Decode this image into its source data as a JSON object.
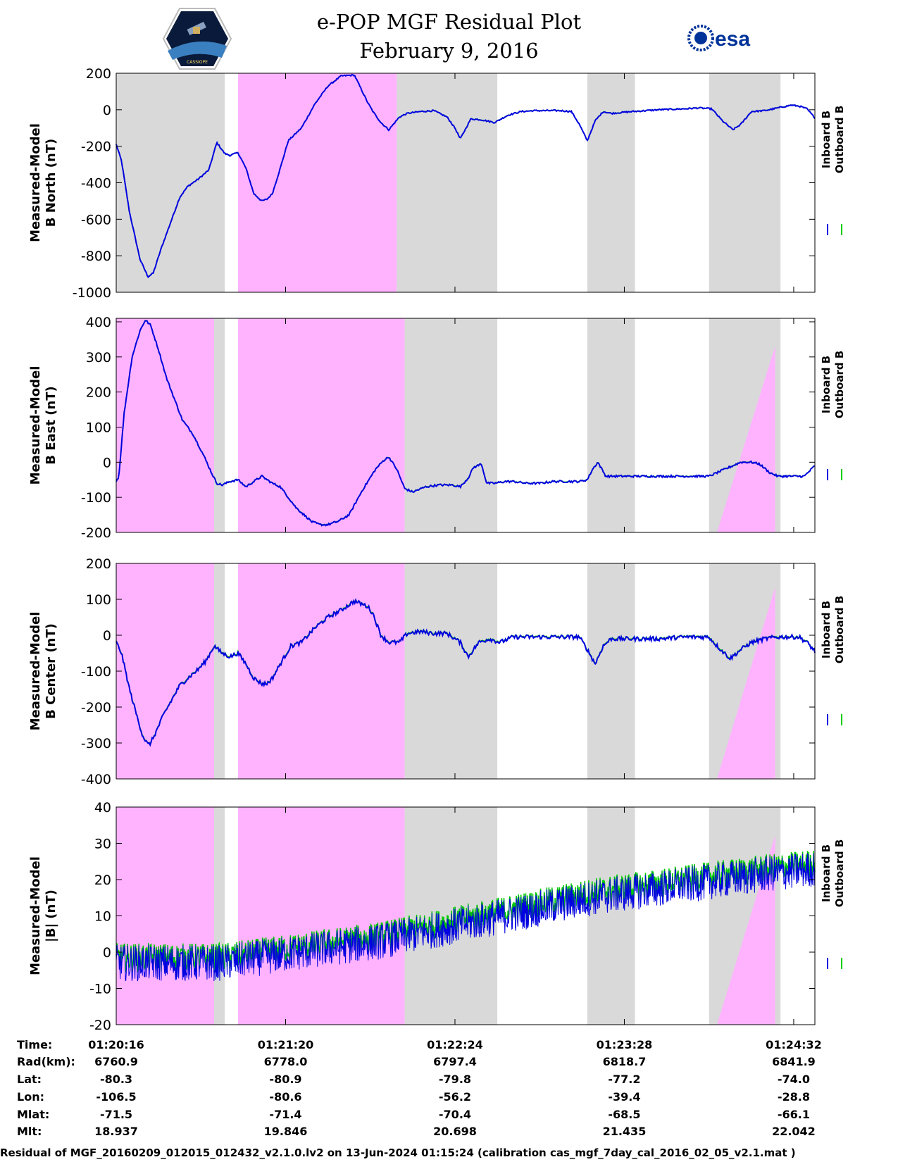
{
  "header": {
    "title_line1": "e-POP MGF Residual Plot",
    "title_line2": "February 9, 2016",
    "left_logo_text": "CASSIOPE",
    "right_logo_text": "esa"
  },
  "colors": {
    "inboard": "#0000e0",
    "outboard": "#00cc00",
    "gray_band": "#d9d9d9",
    "pink_band": "#ffb3ff"
  },
  "chart_data": [
    {
      "type": "line",
      "id": "bnorth",
      "ylabel_line1": "Measured-Model",
      "ylabel_line2": "B North (nT)",
      "ylim": [
        -1000,
        200
      ],
      "yticks": [
        "200",
        "0",
        "-200",
        "-400",
        "-600",
        "-800",
        "-1000"
      ],
      "ytick_values": [
        200,
        0,
        -200,
        -400,
        -600,
        -800,
        -1000
      ],
      "legend": [
        "Inboard B",
        "Outboard B"
      ],
      "xlim_seconds": [
        0,
        264
      ],
      "shaded_regions_seconds": [
        {
          "kind": "gray",
          "from": 0,
          "to": 41
        },
        {
          "kind": "pink",
          "from": 46,
          "to": 106
        },
        {
          "kind": "gray",
          "from": 106,
          "to": 144
        },
        {
          "kind": "gray",
          "from": 178,
          "to": 196
        },
        {
          "kind": "gray",
          "from": 224,
          "to": 251
        }
      ],
      "series": [
        {
          "name": "Inboard B",
          "noise": 4,
          "x": [
            0,
            2,
            5,
            9,
            12,
            14,
            17,
            21,
            24,
            27,
            31,
            35,
            38,
            41,
            43,
            46,
            49,
            52,
            55,
            57,
            59,
            62,
            65,
            70,
            75,
            80,
            85,
            90,
            95,
            97,
            100,
            103,
            107,
            110,
            115,
            120,
            125,
            128,
            130,
            134,
            138,
            143,
            148,
            153,
            158,
            163,
            168,
            172,
            175,
            178,
            181,
            184,
            187,
            195,
            205,
            215,
            220,
            225,
            229,
            233,
            236,
            240,
            245,
            250,
            255,
            258,
            261,
            264
          ],
          "y": [
            -190,
            -280,
            -560,
            -820,
            -915,
            -895,
            -760,
            -600,
            -480,
            -420,
            -380,
            -330,
            -180,
            -240,
            -250,
            -235,
            -320,
            -460,
            -500,
            -490,
            -460,
            -320,
            -170,
            -100,
            30,
            130,
            185,
            190,
            40,
            -10,
            -70,
            -110,
            -40,
            -20,
            -10,
            -5,
            -40,
            -100,
            -160,
            -50,
            -55,
            -70,
            -30,
            -10,
            -5,
            -5,
            -5,
            -10,
            -80,
            -170,
            -60,
            -10,
            -20,
            -10,
            0,
            5,
            10,
            5,
            -60,
            -110,
            -80,
            -10,
            -5,
            10,
            25,
            20,
            5,
            -45
          ]
        }
      ]
    },
    {
      "type": "line",
      "id": "beast",
      "ylabel_line1": "Measured-Model",
      "ylabel_line2": "B East (nT)",
      "ylim": [
        -200,
        410
      ],
      "yticks": [
        "400",
        "300",
        "200",
        "100",
        "0",
        "-100",
        "-200"
      ],
      "ytick_values": [
        400,
        300,
        200,
        100,
        0,
        -100,
        -200
      ],
      "legend": [
        "Inboard B",
        "Outboard B"
      ],
      "xlim_seconds": [
        0,
        264
      ],
      "shaded_regions_seconds": [
        {
          "kind": "pink",
          "from": 0,
          "to": 37
        },
        {
          "kind": "gray",
          "from": 37,
          "to": 41
        },
        {
          "kind": "pink",
          "from": 46,
          "to": 109
        },
        {
          "kind": "gray",
          "from": 109,
          "to": 144
        },
        {
          "kind": "gray",
          "from": 178,
          "to": 196
        },
        {
          "kind": "gray",
          "from": 224,
          "to": 251
        }
      ],
      "ramp_triangle_seconds": {
        "x_start": 227,
        "x_peak": 249,
        "peak_fraction": 0.87
      },
      "series": [
        {
          "name": "Inboard B",
          "noise": 3,
          "x": [
            0,
            1,
            3,
            6,
            9,
            11,
            13,
            16,
            19,
            21,
            25,
            29,
            33,
            36,
            38,
            40,
            43,
            46,
            49,
            52,
            55,
            59,
            62,
            65,
            68,
            71,
            74,
            77,
            80,
            84,
            88,
            93,
            98,
            101,
            103,
            106,
            109,
            112,
            117,
            122,
            127,
            130,
            133,
            135,
            138,
            140,
            143,
            147,
            150,
            155,
            160,
            165,
            170,
            175,
            178,
            180,
            182,
            185,
            195,
            205,
            215,
            224,
            230,
            236,
            240,
            243,
            247,
            250,
            255,
            260,
            264
          ],
          "y": [
            -55,
            -40,
            140,
            300,
            375,
            405,
            390,
            320,
            240,
            200,
            120,
            80,
            20,
            -30,
            -60,
            -65,
            -55,
            -50,
            -70,
            -55,
            -40,
            -60,
            -70,
            -100,
            -130,
            -150,
            -170,
            -178,
            -178,
            -168,
            -150,
            -80,
            -20,
            5,
            15,
            -20,
            -75,
            -85,
            -70,
            -65,
            -65,
            -70,
            -45,
            -15,
            -5,
            -60,
            -60,
            -55,
            -55,
            -60,
            -60,
            -55,
            -55,
            -55,
            -50,
            -20,
            0,
            -40,
            -40,
            -40,
            -40,
            -40,
            -20,
            0,
            0,
            -5,
            -30,
            -40,
            -40,
            -40,
            -10
          ]
        }
      ]
    },
    {
      "type": "line",
      "id": "bcenter",
      "ylabel_line1": "Measured-Model",
      "ylabel_line2": "B Center (nT)",
      "ylim": [
        -400,
        200
      ],
      "yticks": [
        "200",
        "100",
        "0",
        "-100",
        "-200",
        "-300",
        "-400"
      ],
      "ytick_values": [
        200,
        100,
        0,
        -100,
        -200,
        -300,
        -400
      ],
      "legend": [
        "Inboard B",
        "Outboard B"
      ],
      "xlim_seconds": [
        0,
        264
      ],
      "shaded_regions_seconds": [
        {
          "kind": "pink",
          "from": 0,
          "to": 37
        },
        {
          "kind": "gray",
          "from": 37,
          "to": 41
        },
        {
          "kind": "pink",
          "from": 46,
          "to": 109
        },
        {
          "kind": "gray",
          "from": 109,
          "to": 144
        },
        {
          "kind": "gray",
          "from": 178,
          "to": 196
        },
        {
          "kind": "gray",
          "from": 224,
          "to": 251
        }
      ],
      "ramp_triangle_seconds": {
        "x_start": 227,
        "x_peak": 249,
        "peak_fraction": 0.89
      },
      "series": [
        {
          "name": "Inboard B",
          "noise": 6,
          "x": [
            0,
            2,
            5,
            8,
            10,
            12,
            13,
            15,
            18,
            21,
            24,
            27,
            31,
            34,
            37,
            40,
            43,
            46,
            49,
            52,
            55,
            57,
            59,
            62,
            66,
            70,
            75,
            80,
            85,
            90,
            95,
            97,
            100,
            103,
            107,
            110,
            115,
            120,
            125,
            130,
            133,
            137,
            141,
            145,
            150,
            160,
            170,
            175,
            178,
            181,
            184,
            187,
            195,
            205,
            215,
            224,
            227,
            232,
            236,
            240,
            245,
            250,
            255,
            258,
            261,
            264
          ],
          "y": [
            -20,
            -50,
            -150,
            -230,
            -280,
            -305,
            -300,
            -270,
            -220,
            -180,
            -140,
            -120,
            -95,
            -70,
            -30,
            -50,
            -60,
            -50,
            -80,
            -120,
            -135,
            -135,
            -120,
            -80,
            -30,
            -20,
            20,
            50,
            70,
            95,
            80,
            60,
            0,
            -20,
            -20,
            5,
            10,
            5,
            5,
            -20,
            -60,
            -20,
            -10,
            -20,
            -5,
            -5,
            -5,
            -5,
            -40,
            -80,
            -30,
            -10,
            -10,
            -10,
            -5,
            -5,
            -30,
            -65,
            -40,
            -20,
            -10,
            -5,
            -5,
            -5,
            -20,
            -45
          ]
        }
      ]
    },
    {
      "type": "line",
      "id": "bmag",
      "ylabel_line1": "Measured-Model",
      "ylabel_line2": "|B| (nT)",
      "ylim": [
        -20,
        40
      ],
      "yticks": [
        "40",
        "30",
        "20",
        "10",
        "0",
        "-10",
        "-20"
      ],
      "ytick_values": [
        40,
        30,
        20,
        10,
        0,
        -10,
        -20
      ],
      "legend": [
        "Inboard B",
        "Outboard B"
      ],
      "xlim_seconds": [
        0,
        264
      ],
      "shaded_regions_seconds": [
        {
          "kind": "pink",
          "from": 0,
          "to": 37
        },
        {
          "kind": "gray",
          "from": 37,
          "to": 41
        },
        {
          "kind": "pink",
          "from": 46,
          "to": 109
        },
        {
          "kind": "gray",
          "from": 109,
          "to": 144
        },
        {
          "kind": "gray",
          "from": 178,
          "to": 196
        },
        {
          "kind": "gray",
          "from": 224,
          "to": 251
        }
      ],
      "ramp_triangle_seconds": {
        "x_start": 227,
        "x_peak": 249,
        "peak_fraction": 0.87
      },
      "series": [
        {
          "name": "Inboard B",
          "noise": 5,
          "x": [
            0,
            20,
            40,
            60,
            80,
            100,
            120,
            140,
            160,
            180,
            200,
            220,
            240,
            264
          ],
          "y": [
            -3,
            -3,
            -3,
            -1,
            1,
            3,
            6,
            9,
            12,
            15,
            17,
            19,
            21,
            23
          ]
        }
      ]
    }
  ],
  "xaxis": {
    "tick_seconds": [
      0,
      64,
      128,
      192,
      256
    ],
    "tick_labels": [
      "01:20:16",
      "01:21:20",
      "01:22:24",
      "01:23:28",
      "01:24:32"
    ]
  },
  "ephemeris": [
    {
      "label": "Time:",
      "values": [
        "01:20:16",
        "01:21:20",
        "01:22:24",
        "01:23:28",
        "01:24:32"
      ]
    },
    {
      "label": "Rad(km):",
      "values": [
        "6760.9",
        "6778.0",
        "6797.4",
        "6818.7",
        "6841.9"
      ]
    },
    {
      "label": "Lat:",
      "values": [
        "-80.3",
        "-80.9",
        "-79.8",
        "-77.2",
        "-74.0"
      ]
    },
    {
      "label": "Lon:",
      "values": [
        "-106.5",
        "-80.6",
        "-56.2",
        "-39.4",
        "-28.8"
      ]
    },
    {
      "label": "Mlat:",
      "values": [
        "-71.5",
        "-71.4",
        "-70.4",
        "-68.5",
        "-66.1"
      ]
    },
    {
      "label": "Mlt:",
      "values": [
        "18.937",
        "19.846",
        "20.698",
        "21.435",
        "22.042"
      ]
    }
  ],
  "footer": "Residual of MGF_20160209_012015_012432_v2.1.0.lv2 on 13-Jun-2024 01:15:24 (calibration cas_mgf_7day_cal_2016_02_05_v2.1.mat )"
}
